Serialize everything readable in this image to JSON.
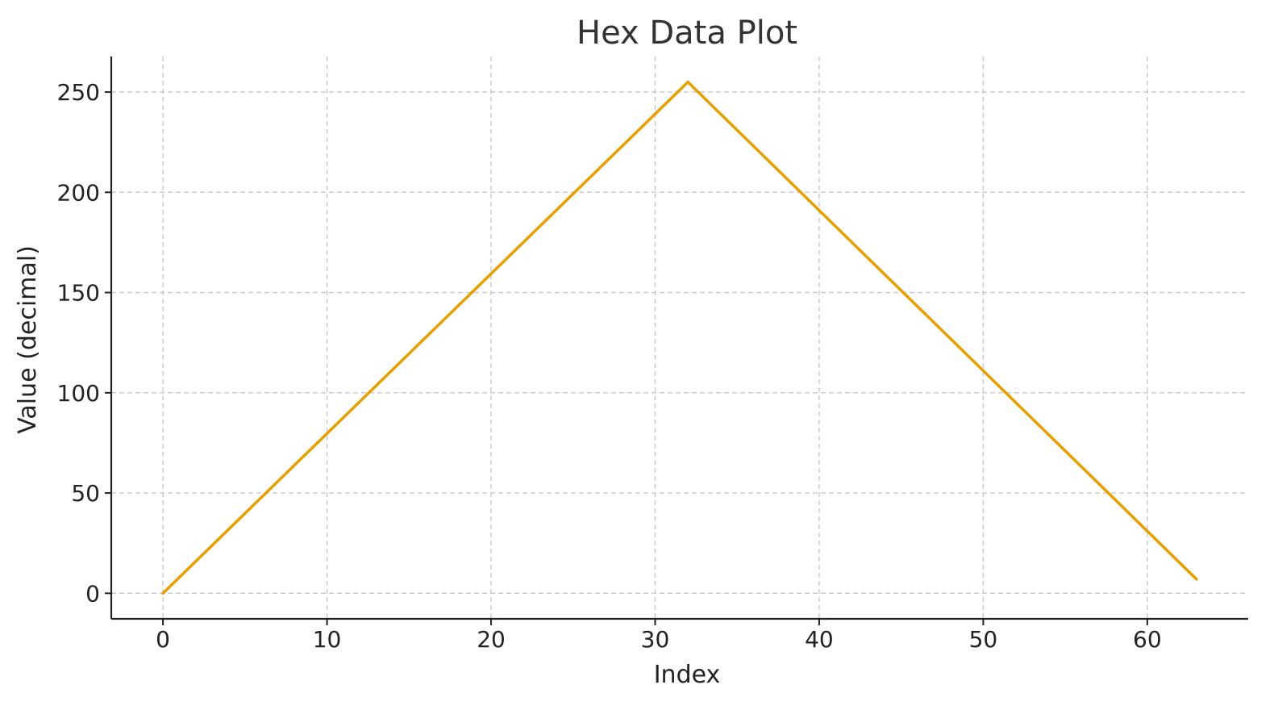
{
  "chart_data": {
    "type": "line",
    "title": "Hex Data Plot",
    "xlabel": "Index",
    "ylabel": "Value (decimal)",
    "xlim": [
      -3.15,
      66.15
    ],
    "ylim": [
      -12.75,
      267.75
    ],
    "x_ticks": [
      0,
      10,
      20,
      30,
      40,
      50,
      60
    ],
    "y_ticks": [
      0,
      50,
      100,
      150,
      200,
      250
    ],
    "grid": true,
    "series": [
      {
        "color": "#E69F00",
        "x": [
          0,
          32,
          63
        ],
        "y": [
          0,
          255,
          7
        ]
      }
    ]
  }
}
